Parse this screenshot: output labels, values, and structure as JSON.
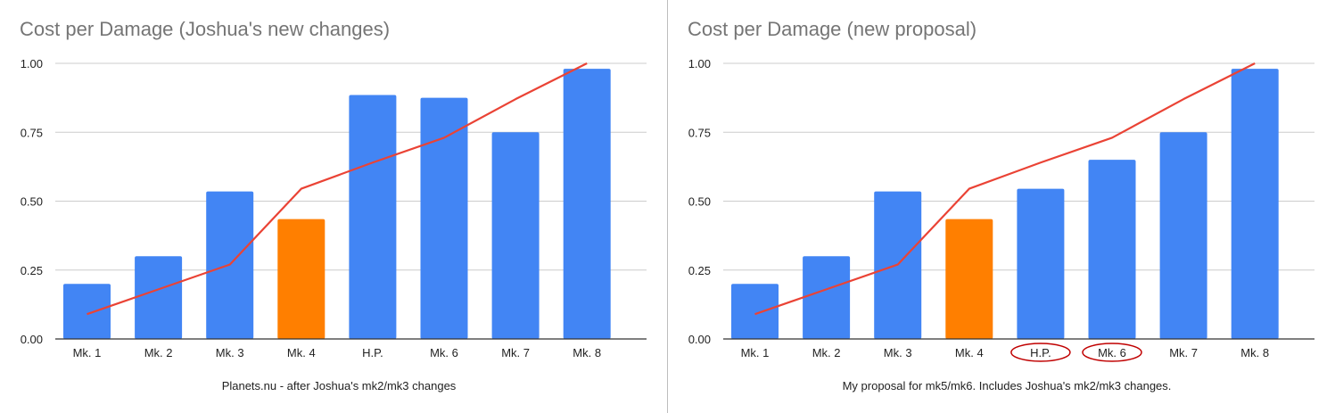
{
  "colors": {
    "bar_default": "#4285f4",
    "bar_highlight": "#ff7f00",
    "line": "#ea4335",
    "grid": "#cccccc",
    "axis": "#333333",
    "circle": "#c00000",
    "title": "#757575"
  },
  "chart_data": [
    {
      "type": "bar",
      "title": "Cost per Damage (Joshua's new changes)",
      "caption": "Planets.nu - after Joshua's mk2/mk3 changes",
      "categories": [
        "Mk. 1",
        "Mk. 2",
        "Mk. 3",
        "Mk. 4",
        "H.P.",
        "Mk. 6",
        "Mk. 7",
        "Mk. 8"
      ],
      "series": [
        {
          "type": "bar",
          "values": [
            0.2,
            0.3,
            0.535,
            0.435,
            0.885,
            0.875,
            0.75,
            0.98
          ]
        },
        {
          "type": "line",
          "values": [
            0.09,
            0.18,
            0.27,
            0.545,
            0.64,
            0.73,
            0.87,
            1.0
          ]
        }
      ],
      "highlight_index": 3,
      "circled_categories": [],
      "yticks": [
        "0.00",
        "0.25",
        "0.50",
        "0.75",
        "1.00"
      ],
      "ylim": [
        0,
        1
      ],
      "grid": true,
      "legend": "none"
    },
    {
      "type": "bar",
      "title": "Cost per Damage (new proposal)",
      "caption": "My proposal for mk5/mk6. Includes Joshua's mk2/mk3 changes.",
      "categories": [
        "Mk. 1",
        "Mk. 2",
        "Mk. 3",
        "Mk. 4",
        "H.P.",
        "Mk. 6",
        "Mk. 7",
        "Mk. 8"
      ],
      "series": [
        {
          "type": "bar",
          "values": [
            0.2,
            0.3,
            0.535,
            0.435,
            0.545,
            0.65,
            0.75,
            0.98
          ]
        },
        {
          "type": "line",
          "values": [
            0.09,
            0.18,
            0.27,
            0.545,
            0.64,
            0.73,
            0.87,
            1.0
          ]
        }
      ],
      "highlight_index": 3,
      "circled_categories": [
        4,
        5
      ],
      "yticks": [
        "0.00",
        "0.25",
        "0.50",
        "0.75",
        "1.00"
      ],
      "ylim": [
        0,
        1
      ],
      "grid": true,
      "legend": "none"
    }
  ]
}
